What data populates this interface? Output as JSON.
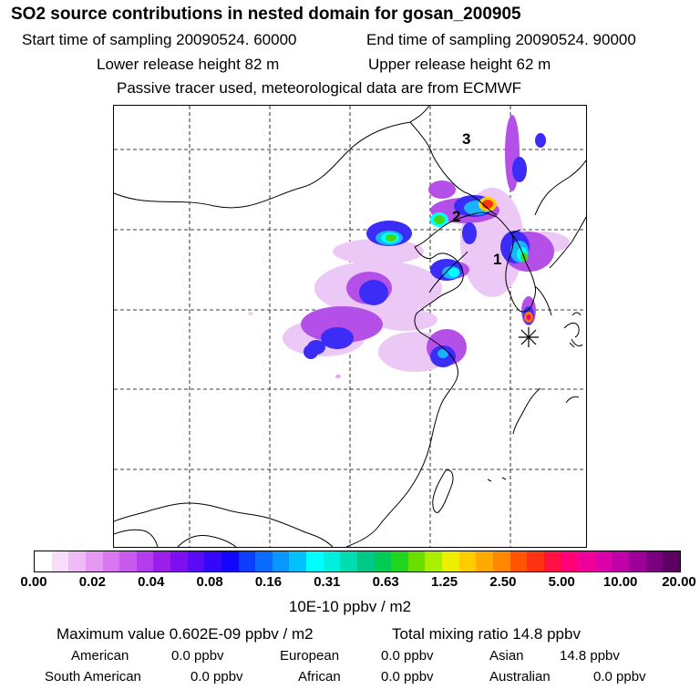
{
  "header": {
    "title": "SO2 source contributions in nested domain for gosan_200905",
    "start_time": "Start time of sampling 20090524. 60000",
    "end_time": "End time of sampling 20090524. 90000",
    "lower_release": "Lower release height   82 m",
    "upper_release": "Upper release height   62 m",
    "tracer_note": "Passive tracer used, meteorological data are from ECMWF"
  },
  "chart_data": {
    "type": "heatmap",
    "title": "SO2 source contributions in nested domain for gosan_200905",
    "markers": [
      {
        "label": "1",
        "kind": "region-number"
      },
      {
        "label": "2",
        "kind": "region-number"
      },
      {
        "label": "3",
        "kind": "region-number"
      },
      {
        "label": "receptor (Gosan)",
        "kind": "asterisk"
      }
    ],
    "colorbar": {
      "ticks": [
        "0.00",
        "0.02",
        "0.04",
        "0.08",
        "0.16",
        "0.31",
        "0.63",
        "1.25",
        "2.50",
        "5.00",
        "10.00",
        "20.00"
      ],
      "units": "10E-10 ppbv / m2",
      "colors": [
        "#ffffff",
        "#f6ddf9",
        "#efbbf5",
        "#e699f2",
        "#d877ef",
        "#c95aee",
        "#b53cec",
        "#9b1eea",
        "#7f0ff0",
        "#5a0af5",
        "#3407fa",
        "#1405ff",
        "#0d3eff",
        "#0a6cff",
        "#0896ff",
        "#03c0ff",
        "#00ffff",
        "#00eedd",
        "#00dcb2",
        "#00c987",
        "#00cc55",
        "#22d620",
        "#6ade00",
        "#aaee00",
        "#eeee00",
        "#ffcc00",
        "#ffaa00",
        "#ff8800",
        "#ff5500",
        "#ff3311",
        "#ff1144",
        "#ff0077",
        "#ee0099",
        "#dd00aa",
        "#c000a8",
        "#9c0098",
        "#7a0080",
        "#5c0063"
      ]
    },
    "stats": {
      "maximum": "Maximum value  0.602E-09 ppbv / m2",
      "total": "Total mixing ratio       14.8 ppbv"
    },
    "contributions": [
      {
        "label": "American",
        "value": "0.0 ppbv"
      },
      {
        "label": "European",
        "value": "0.0 ppbv"
      },
      {
        "label": "Asian",
        "value": "14.8 ppbv"
      },
      {
        "label": "South American",
        "value": "0.0 ppbv"
      },
      {
        "label": "African",
        "value": "0.0 ppbv"
      },
      {
        "label": "Australian",
        "value": "0.0 ppbv"
      }
    ]
  }
}
